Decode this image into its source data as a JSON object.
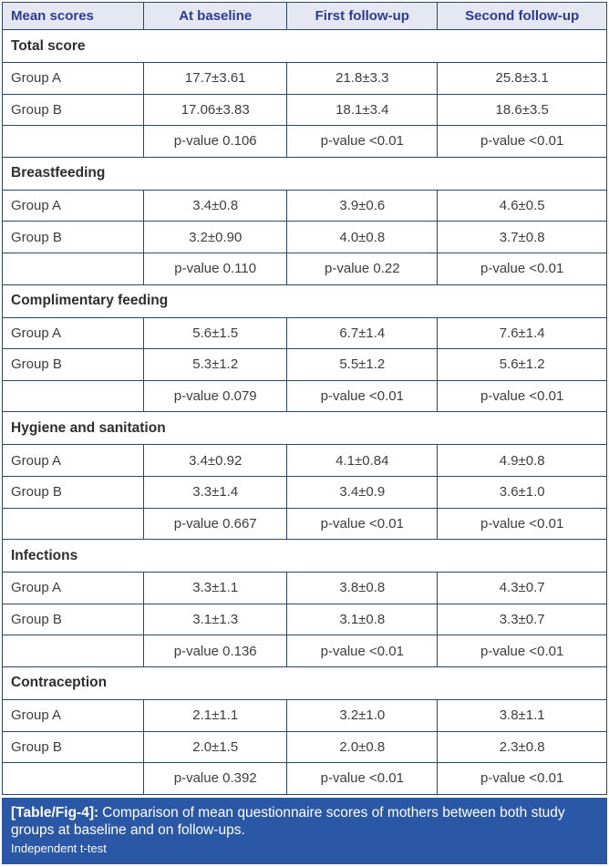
{
  "table": {
    "columns": [
      "Mean scores",
      "At baseline",
      "First follow-up",
      "Second follow-up"
    ],
    "sections": [
      {
        "title": "Total score",
        "rows": [
          {
            "label": "Group A",
            "values": [
              "17.7±3.61",
              "21.8±3.3",
              "25.8±3.1"
            ]
          },
          {
            "label": "Group B",
            "values": [
              "17.06±3.83",
              "18.1±3.4",
              "18.6±3.5"
            ]
          },
          {
            "label": "",
            "values": [
              "p-value 0.106",
              "p-value <0.01",
              "p-value <0.01"
            ]
          }
        ]
      },
      {
        "title": "Breastfeeding",
        "rows": [
          {
            "label": "Group A",
            "values": [
              "3.4±0.8",
              "3.9±0.6",
              "4.6±0.5"
            ]
          },
          {
            "label": "Group B",
            "values": [
              "3.2±0.90",
              "4.0±0.8",
              "3.7±0.8"
            ]
          },
          {
            "label": "",
            "values": [
              "p-value 0.110",
              "p-value 0.22",
              "p-value <0.01"
            ]
          }
        ]
      },
      {
        "title": "Complimentary feeding",
        "rows": [
          {
            "label": "Group A",
            "values": [
              "5.6±1.5",
              "6.7±1.4",
              "7.6±1.4"
            ]
          },
          {
            "label": "Group B",
            "values": [
              "5.3±1.2",
              "5.5±1.2",
              "5.6±1.2"
            ]
          },
          {
            "label": "",
            "values": [
              "p-value 0.079",
              "p-value <0.01",
              "p-value <0.01"
            ]
          }
        ]
      },
      {
        "title": "Hygiene and sanitation",
        "rows": [
          {
            "label": "Group A",
            "values": [
              "3.4±0.92",
              "4.1±0.84",
              "4.9±0.8"
            ]
          },
          {
            "label": "Group B",
            "values": [
              "3.3±1.4",
              "3.4±0.9",
              "3.6±1.0"
            ]
          },
          {
            "label": "",
            "values": [
              "p-value 0.667",
              "p-value <0.01",
              "p-value <0.01"
            ]
          }
        ]
      },
      {
        "title": "Infections",
        "rows": [
          {
            "label": "Group A",
            "values": [
              "3.3±1.1",
              "3.8±0.8",
              "4.3±0.7"
            ]
          },
          {
            "label": "Group B",
            "values": [
              "3.1±1.3",
              "3.1±0.8",
              "3.3±0.7"
            ]
          },
          {
            "label": "",
            "values": [
              "p-value 0.136",
              "p-value <0.01",
              "p-value <0.01"
            ]
          }
        ]
      },
      {
        "title": "Contraception",
        "rows": [
          {
            "label": "Group A",
            "values": [
              "2.1±1.1",
              "3.2±1.0",
              "3.8±1.1"
            ]
          },
          {
            "label": "Group B",
            "values": [
              "2.0±1.5",
              "2.0±0.8",
              "2.3±0.8"
            ]
          },
          {
            "label": "",
            "values": [
              "p-value 0.392",
              "p-value <0.01",
              "p-value <0.01"
            ]
          }
        ]
      }
    ]
  },
  "caption": {
    "tag": "[Table/Fig-4]:",
    "text": "Comparison of mean questionnaire scores of mothers between both study groups at baseline and on follow-ups.",
    "note": "Independent t-test"
  },
  "colors": {
    "border": "#2c4767",
    "header_bg": "#e5e7f2",
    "header_text": "#2c3c92",
    "body_text": "#3d3d3d",
    "footer_bg": "#2a57a6",
    "footer_text": "#ffffff"
  }
}
